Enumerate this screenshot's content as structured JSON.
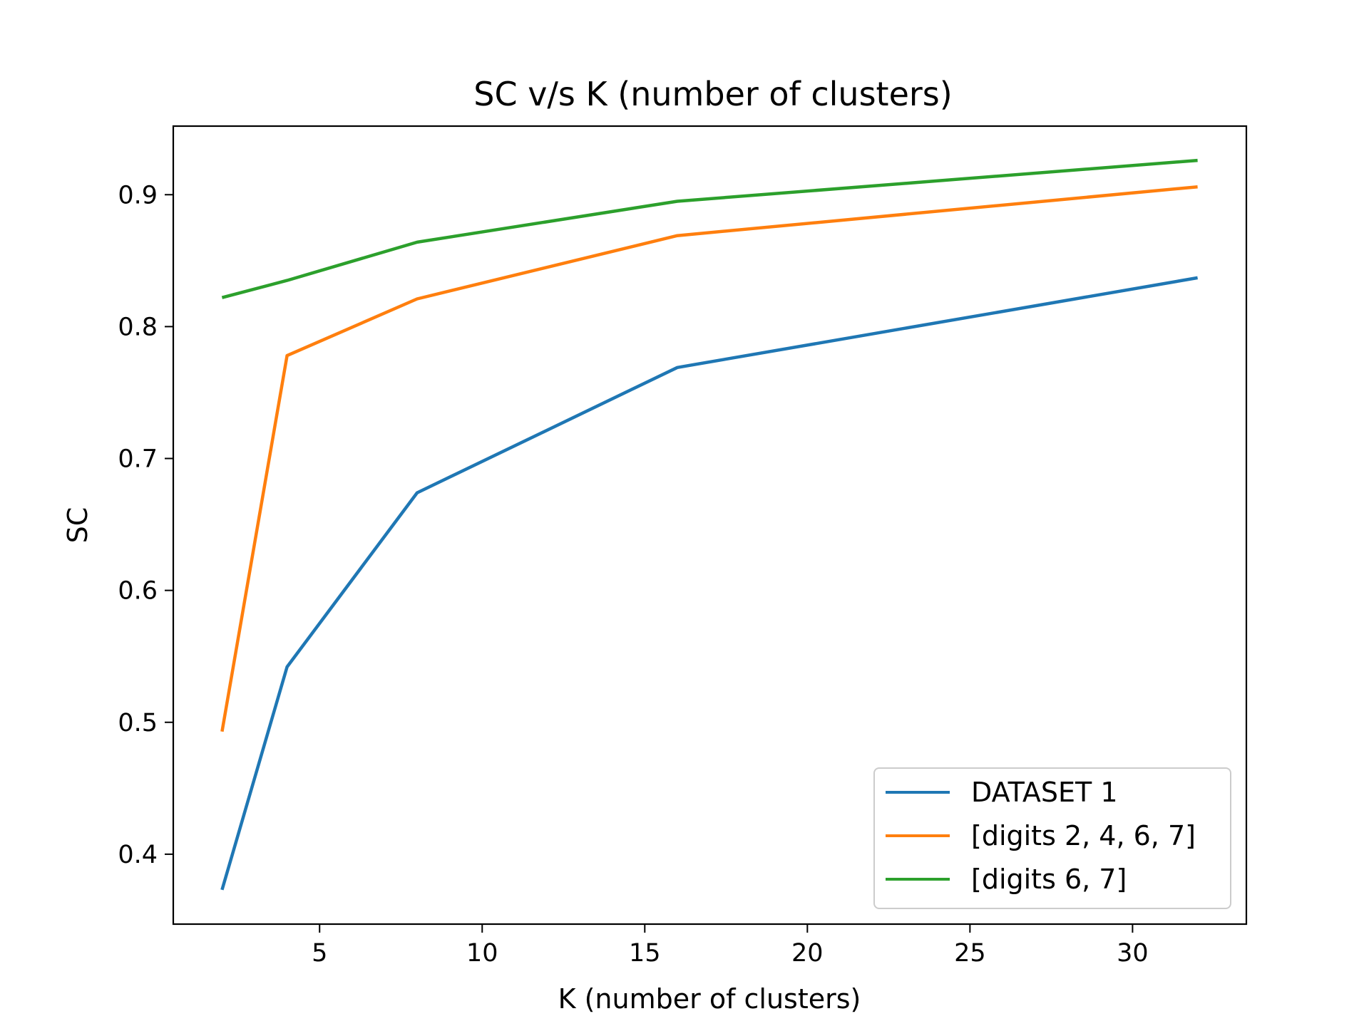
{
  "chart_data": {
    "type": "line",
    "title": "SC v/s K (number of clusters)",
    "xlabel": "K (number of clusters)",
    "ylabel": "SC",
    "x": [
      2,
      4,
      8,
      16,
      32
    ],
    "series": [
      {
        "name": "DATASET 1",
        "color": "#1f77b4",
        "values": [
          0.373,
          0.542,
          0.674,
          0.769,
          0.837
        ]
      },
      {
        "name": "[digits 2, 4, 6, 7]",
        "color": "#ff7f0e",
        "values": [
          0.493,
          0.778,
          0.821,
          0.869,
          0.906
        ]
      },
      {
        "name": "[digits 6, 7]",
        "color": "#2ca02c",
        "values": [
          0.822,
          0.835,
          0.864,
          0.895,
          0.926
        ]
      }
    ],
    "xlim": [
      0.5,
      33.5
    ],
    "ylim": [
      0.347,
      0.952
    ],
    "xticks": [
      5,
      10,
      15,
      20,
      25,
      30
    ],
    "xtick_labels": [
      "5",
      "10",
      "15",
      "20",
      "25",
      "30"
    ],
    "yticks": [
      0.4,
      0.5,
      0.6,
      0.7,
      0.8,
      0.9
    ],
    "ytick_labels": [
      "0.4",
      "0.5",
      "0.6",
      "0.7",
      "0.8",
      "0.9"
    ],
    "grid": false,
    "legend_position": "lower-right"
  }
}
